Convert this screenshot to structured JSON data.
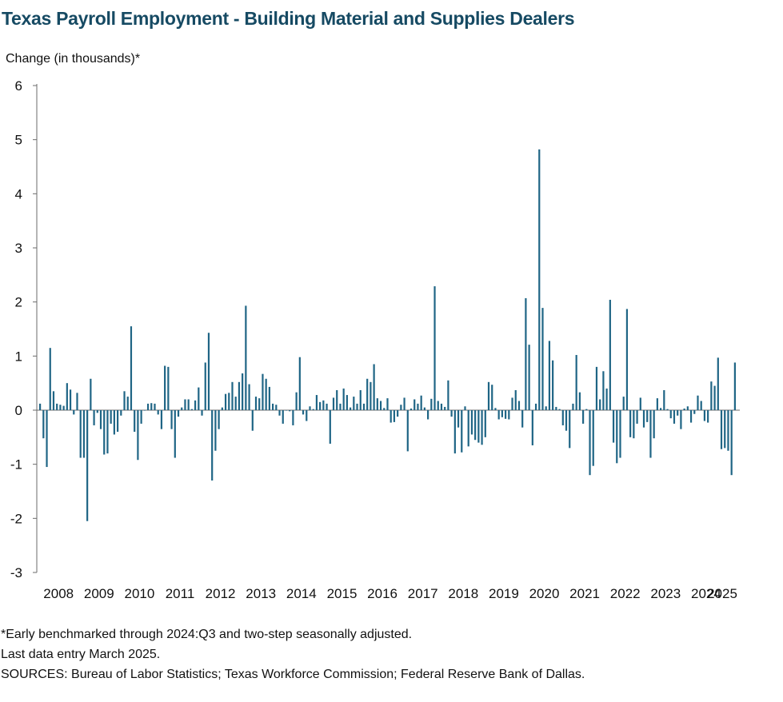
{
  "colors": {
    "title": "#164a63",
    "bar": "#1f6585",
    "axis": "#6b6b6b"
  },
  "chart_data": {
    "type": "bar",
    "title": "Texas Payroll Employment - Building Material and Supplies Dealers",
    "ylabel": "Change (in thousands)*",
    "xlabel": "",
    "ylim": [
      -3,
      6
    ],
    "yticks": [
      6,
      5,
      4,
      3,
      2,
      1,
      0,
      -1,
      -2,
      -3
    ],
    "xticks": [
      "2008",
      "2009",
      "2010",
      "2011",
      "2012",
      "2013",
      "2014",
      "2015",
      "2016",
      "2017",
      "2018",
      "2019",
      "2020",
      "2021",
      "2022",
      "2023",
      "2024",
      "2025"
    ],
    "start": "2008-01",
    "end": "2025-03",
    "frequency": "monthly",
    "values": [
      0.12,
      -0.52,
      -1.05,
      1.15,
      0.35,
      0.12,
      0.1,
      0.08,
      0.5,
      0.38,
      -0.08,
      0.32,
      -0.88,
      -0.88,
      -2.05,
      0.58,
      -0.28,
      -0.05,
      -0.35,
      -0.82,
      -0.8,
      -0.25,
      -0.45,
      -0.4,
      -0.1,
      0.35,
      0.25,
      1.55,
      -0.4,
      -0.92,
      -0.25,
      0.0,
      0.12,
      0.13,
      0.12,
      -0.08,
      -0.35,
      0.82,
      0.8,
      -0.35,
      -0.88,
      -0.12,
      0.05,
      0.2,
      0.2,
      0.02,
      0.18,
      0.42,
      -0.1,
      0.88,
      1.43,
      -1.3,
      -0.75,
      -0.35,
      0.05,
      0.3,
      0.32,
      0.52,
      0.25,
      0.52,
      0.68,
      1.93,
      0.48,
      -0.38,
      0.25,
      0.22,
      0.67,
      0.58,
      0.43,
      0.12,
      0.1,
      -0.1,
      -0.25,
      0.0,
      -0.02,
      -0.28,
      0.33,
      0.98,
      -0.08,
      -0.2,
      0.07,
      0.02,
      0.28,
      0.15,
      0.18,
      0.12,
      -0.62,
      0.23,
      0.37,
      0.12,
      0.4,
      0.28,
      0.05,
      0.25,
      0.12,
      0.37,
      0.12,
      0.58,
      0.52,
      0.85,
      0.22,
      0.17,
      0.04,
      0.22,
      -0.23,
      -0.22,
      -0.12,
      0.1,
      0.23,
      -0.76,
      0.03,
      0.2,
      0.12,
      0.27,
      0.05,
      -0.17,
      0.21,
      2.29,
      0.17,
      0.12,
      0.06,
      0.55,
      -0.12,
      -0.8,
      -0.32,
      -0.78,
      0.07,
      -0.67,
      -0.45,
      -0.55,
      -0.6,
      -0.64,
      -0.5,
      0.52,
      0.47,
      0.04,
      -0.17,
      -0.13,
      -0.16,
      -0.17,
      0.23,
      0.37,
      0.17,
      -0.32,
      2.07,
      1.21,
      -0.65,
      0.12,
      4.82,
      1.89,
      0.07,
      1.28,
      0.92,
      0.06,
      0.02,
      -0.28,
      -0.38,
      -0.7,
      0.12,
      1.02,
      0.33,
      -0.25,
      0.02,
      -1.2,
      -1.03,
      0.8,
      0.2,
      0.72,
      0.4,
      2.04,
      -0.6,
      -0.98,
      -0.88,
      0.25,
      1.87,
      -0.5,
      -0.52,
      -0.25,
      0.23,
      -0.32,
      -0.22,
      -0.88,
      -0.52,
      0.22,
      0.04,
      0.37,
      0.02,
      -0.15,
      -0.25,
      -0.1,
      -0.35,
      0.03,
      0.07,
      -0.23,
      -0.07,
      0.27,
      0.17,
      -0.2,
      -0.23,
      0.53,
      0.45,
      0.97,
      -0.72,
      -0.7,
      -0.75,
      -1.2,
      0.88
    ]
  },
  "footnotes": [
    "*Early benchmarked through 2024:Q3 and two-step seasonally adjusted.",
    "Last data entry March 2025.",
    "SOURCES: Bureau of Labor Statistics; Texas Workforce Commission; Federal Reserve Bank of Dallas."
  ]
}
